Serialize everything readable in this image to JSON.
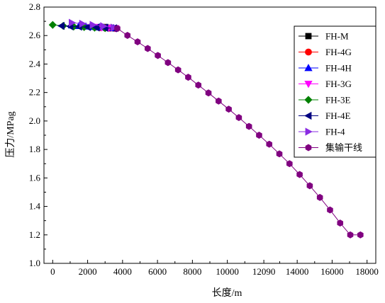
{
  "chart_data": {
    "type": "line",
    "xlabel": "长度/m",
    "ylabel": "压力/MPag",
    "xlim": [
      -500,
      18500
    ],
    "ylim": [
      1.0,
      2.8
    ],
    "x_ticks": [
      0,
      2000,
      4000,
      6000,
      8000,
      10000,
      12090,
      14000,
      16000,
      18000
    ],
    "y_ticks": [
      1.0,
      1.2,
      1.4,
      1.6,
      1.8,
      2.0,
      2.2,
      2.4,
      2.6,
      2.8
    ],
    "legend_position": "right",
    "series": [
      {
        "name": "FH-M",
        "color": "#000000",
        "marker": "square",
        "x": [
          3000,
          3300,
          3600
        ],
        "y": [
          2.66,
          2.655,
          2.65
        ]
      },
      {
        "name": "FH-4G",
        "color": "#ff0000",
        "marker": "circle",
        "x": [
          2700,
          3000,
          3300,
          3600
        ],
        "y": [
          2.656,
          2.654,
          2.652,
          2.65
        ]
      },
      {
        "name": "FH-4H",
        "color": "#0000ff",
        "marker": "triangle-up",
        "x": [
          1100,
          1500,
          1900,
          2300,
          2700,
          3100,
          3500
        ],
        "y": [
          2.672,
          2.668,
          2.664,
          2.661,
          2.658,
          2.655,
          2.652
        ]
      },
      {
        "name": "FH-3G",
        "color": "#ff00ff",
        "marker": "triangle-down",
        "x": [
          2400,
          2800,
          3200,
          3600
        ],
        "y": [
          2.66,
          2.657,
          2.654,
          2.651
        ]
      },
      {
        "name": "FH-3E",
        "color": "#008000",
        "marker": "diamond",
        "x": [
          0,
          600,
          1200,
          1800,
          2400,
          3000
        ],
        "y": [
          2.675,
          2.668,
          2.663,
          2.659,
          2.655,
          2.652
        ]
      },
      {
        "name": "FH-4E",
        "color": "#000080",
        "marker": "triangle-left",
        "x": [
          500,
          1000,
          1500,
          2000,
          2500,
          3000,
          3500
        ],
        "y": [
          2.668,
          2.665,
          2.662,
          2.66,
          2.657,
          2.654,
          2.651
        ]
      },
      {
        "name": "FH-4",
        "color": "#8a2be2",
        "marker": "triangle-right",
        "x": [
          1100,
          1700,
          2300,
          2900,
          3500
        ],
        "y": [
          2.69,
          2.683,
          2.675,
          2.666,
          2.656
        ]
      },
      {
        "name": "集输干线",
        "color": "#800080",
        "marker": "hexagon",
        "x": [
          3700,
          4280,
          4860,
          5440,
          6020,
          6600,
          7180,
          7760,
          8340,
          8920,
          9500,
          10080,
          10660,
          11240,
          11820,
          12400,
          12980,
          13560,
          14140,
          14720,
          15300,
          15880,
          16460,
          17040,
          17620
        ],
        "y": [
          2.65,
          2.601,
          2.556,
          2.509,
          2.46,
          2.41,
          2.359,
          2.307,
          2.252,
          2.197,
          2.14,
          2.083,
          2.024,
          1.962,
          1.9,
          1.837,
          1.769,
          1.7,
          1.624,
          1.545,
          1.463,
          1.375,
          1.283,
          1.2,
          1.2
        ]
      }
    ]
  }
}
